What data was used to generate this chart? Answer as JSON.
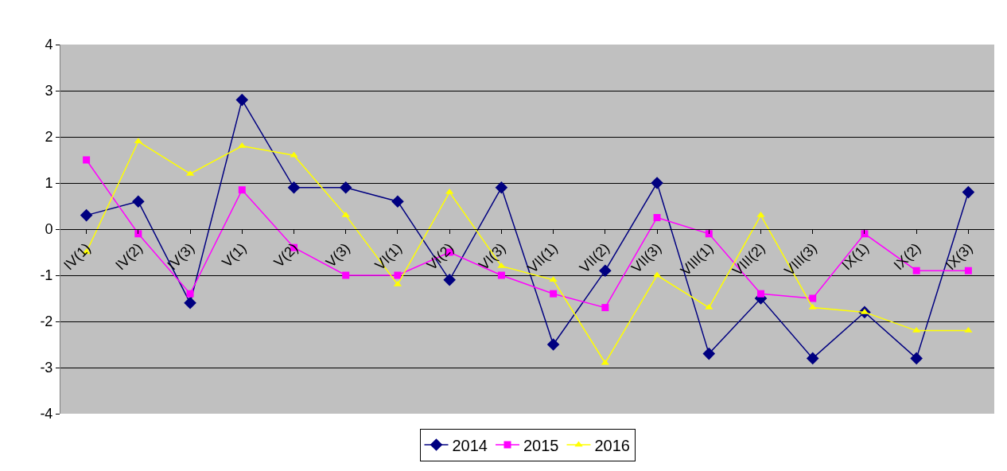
{
  "chart_data": {
    "type": "line",
    "categories": [
      "IV(1)",
      "IV(2)",
      "IV(3)",
      "V(1)",
      "V(2)",
      "V(3)",
      "VI(1)",
      "VI(2)",
      "VI(3)",
      "VII(1)",
      "VII(2)",
      "VII(3)",
      "VIII(1)",
      "VIII(2)",
      "VIII(3)",
      "IX(1)",
      "IX(2)",
      "IX(3)"
    ],
    "series": [
      {
        "name": "2014",
        "color": "#000080",
        "marker": "diamond",
        "values": [
          0.3,
          0.6,
          -1.6,
          2.8,
          0.9,
          0.9,
          0.6,
          -1.1,
          0.9,
          -2.5,
          -0.9,
          1.0,
          -2.7,
          -1.5,
          -2.8,
          -1.8,
          -2.8,
          0.8
        ]
      },
      {
        "name": "2015",
        "color": "#ff00ff",
        "marker": "square",
        "values": [
          1.5,
          -0.1,
          -1.4,
          0.85,
          -0.4,
          -1.0,
          -1.0,
          -0.5,
          -1.0,
          -1.4,
          -1.7,
          0.25,
          -0.1,
          -1.4,
          -1.5,
          -0.1,
          -0.9,
          -0.9
        ]
      },
      {
        "name": "2016",
        "color": "#ffff00",
        "marker": "triangle",
        "values": [
          -0.5,
          1.9,
          1.2,
          1.8,
          1.6,
          0.3,
          -1.2,
          0.8,
          -0.8,
          -1.1,
          -2.9,
          -1.0,
          -1.7,
          0.3,
          -1.7,
          -1.8,
          -2.2,
          -2.2
        ]
      }
    ],
    "ylim": [
      -4,
      4
    ],
    "yticks": [
      -4,
      -3,
      -2,
      -1,
      0,
      1,
      2,
      3,
      4
    ],
    "grid": "y",
    "legend": "bottom",
    "line_style": "solid"
  }
}
